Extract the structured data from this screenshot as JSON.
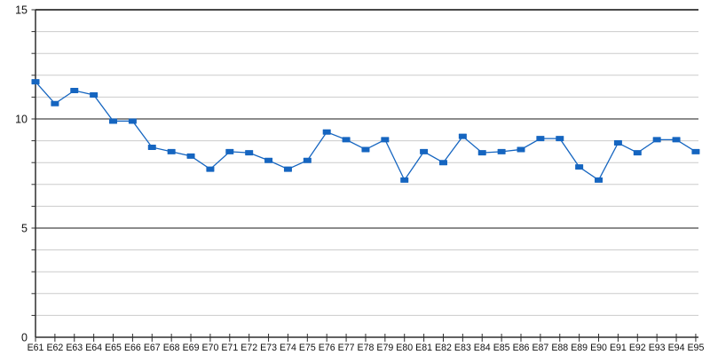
{
  "chart_data": {
    "type": "line",
    "title": "",
    "xlabel": "",
    "ylabel": "",
    "categories": [
      "E61",
      "E62",
      "E63",
      "E64",
      "E65",
      "E66",
      "E67",
      "E68",
      "E69",
      "E70",
      "E71",
      "E72",
      "E73",
      "E74",
      "E75",
      "E76",
      "E77",
      "E78",
      "E79",
      "E80",
      "E81",
      "E82",
      "E83",
      "E84",
      "E85",
      "E86",
      "E87",
      "E88",
      "E89",
      "E90",
      "E91",
      "E92",
      "E93",
      "E94",
      "E95"
    ],
    "values": [
      11.7,
      10.7,
      11.3,
      11.1,
      9.9,
      9.9,
      8.7,
      8.5,
      8.3,
      7.7,
      8.5,
      8.45,
      8.1,
      7.7,
      8.1,
      9.4,
      9.05,
      8.6,
      9.05,
      7.2,
      8.5,
      8.0,
      9.2,
      8.45,
      8.5,
      8.6,
      9.1,
      9.1,
      7.8,
      7.2,
      8.9,
      8.45,
      9.05,
      9.05,
      8.5
    ],
    "ylim": [
      0,
      15
    ],
    "y_major_ticks": [
      0,
      5,
      10,
      15
    ],
    "y_major_tick_labels": [
      "0",
      "5",
      "10",
      "15"
    ],
    "y_minor_step": 1,
    "grid": "on",
    "legend": "none",
    "marker_shape": "square",
    "line_color": "#1565c0",
    "marker_color": "#1565c0",
    "major_grid_color": "#474747",
    "minor_grid_color": "#cccccc",
    "axis_color": "#2e2e2e",
    "label_color": "#111111"
  }
}
